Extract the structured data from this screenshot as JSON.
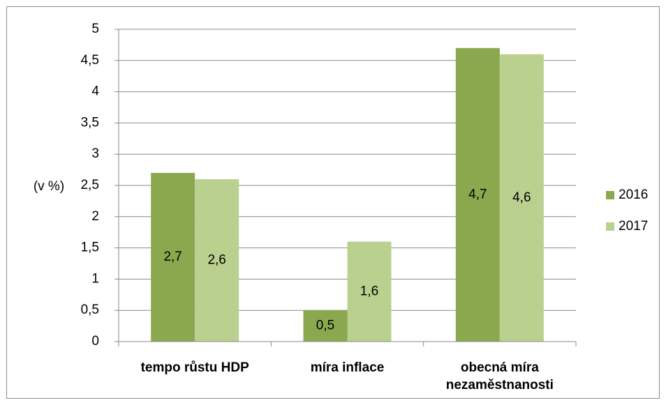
{
  "chart_data": {
    "type": "bar",
    "y_label": "(v %)",
    "categories": [
      "tempo růstu HDP",
      "míra inflace",
      "obecná míra nezaměstnanosti"
    ],
    "series": [
      {
        "name": "2016",
        "color": "#8aa94f",
        "values": [
          2.7,
          0.5,
          4.7
        ],
        "value_labels": [
          "2,7",
          "0,5",
          "4,7"
        ]
      },
      {
        "name": "2017",
        "color": "#b9d08f",
        "values": [
          2.6,
          1.6,
          4.6
        ],
        "value_labels": [
          "2,6",
          "1,6",
          "4,6"
        ]
      }
    ],
    "ylim": [
      0,
      5
    ],
    "yticks": [
      0,
      {
        "value": 0.5,
        "label": "0,5"
      },
      1,
      {
        "value": 1.5,
        "label": "1,5"
      },
      2,
      {
        "value": 2.5,
        "label": "2,5"
      },
      3,
      {
        "value": 3.5,
        "label": "3,5"
      },
      4,
      {
        "value": 4.5,
        "label": "4,5"
      },
      5
    ],
    "grid": true,
    "legend": "right"
  }
}
